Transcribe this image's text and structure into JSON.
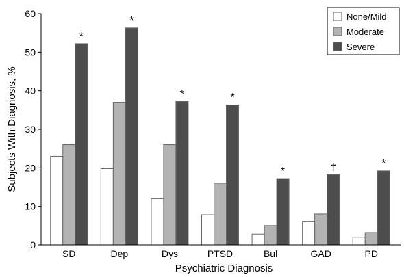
{
  "chart_data": {
    "type": "bar",
    "xlabel": "Psychiatric Diagnosis",
    "ylabel": "Subjects With Diagnosis, %",
    "ylim": [
      0,
      60
    ],
    "yticks": [
      "0",
      "10",
      "20",
      "30",
      "40",
      "50",
      "60"
    ],
    "categories": [
      "SD",
      "Dep",
      "Dys",
      "PTSD",
      "Bul",
      "GAD",
      "PD"
    ],
    "series": [
      {
        "name": "None/Mild",
        "color": "#ffffff",
        "values": [
          23,
          19.8,
          12,
          7.8,
          2.8,
          6.1,
          2
        ]
      },
      {
        "name": "Moderate",
        "color": "#b3b3b3",
        "values": [
          26,
          37,
          26,
          16,
          5,
          8,
          3.2
        ]
      },
      {
        "name": "Severe",
        "color": "#4d4d4d",
        "values": [
          52.2,
          56.3,
          37.2,
          36.3,
          17.2,
          18.2,
          19.2
        ]
      }
    ],
    "markers": [
      "*",
      "*",
      "*",
      "*",
      "*",
      "†",
      "*"
    ],
    "legend_position": "top-right",
    "grid": false
  }
}
